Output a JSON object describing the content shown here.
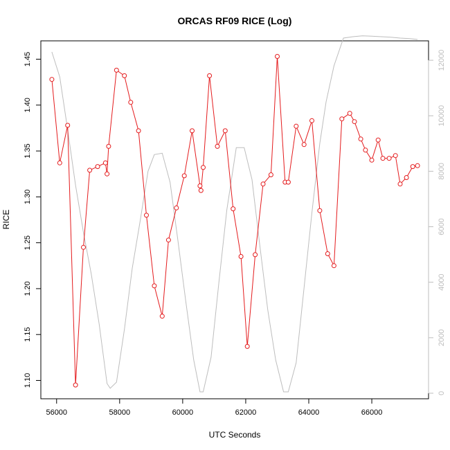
{
  "chart_data": {
    "type": "line",
    "title": "ORCAS RF09 RICE (Log)",
    "xlabel": "UTC Seconds",
    "ylabel": "RICE",
    "xlim": [
      55500,
      67800
    ],
    "ylim": [
      1.08,
      1.47
    ],
    "y2lim": [
      -200,
      12700
    ],
    "x_ticks": [
      56000,
      58000,
      60000,
      62000,
      64000,
      66000
    ],
    "y_ticks": [
      1.1,
      1.15,
      1.2,
      1.25,
      1.3,
      1.35,
      1.4,
      1.45
    ],
    "y2_ticks": [
      0,
      2000,
      4000,
      6000,
      8000,
      10000,
      12000
    ],
    "x_tick_labels": [
      "56000",
      "58000",
      "60000",
      "62000",
      "64000",
      "66000"
    ],
    "y_tick_labels": [
      "1.10",
      "1.15",
      "1.20",
      "1.25",
      "1.30",
      "1.35",
      "1.40",
      "1.45"
    ],
    "y2_tick_labels": [
      "0",
      "2000",
      "4000",
      "6000",
      "8000",
      "10000",
      "12000"
    ],
    "series": [
      {
        "axis": "left",
        "color": "#e41a1c",
        "marker": "open-circle",
        "x": [
          55850,
          56100,
          56350,
          56600,
          56850,
          57050,
          57300,
          57550,
          57600,
          57650,
          57900,
          58150,
          58350,
          58600,
          58850,
          59100,
          59350,
          59550,
          59800,
          60050,
          60300,
          60550,
          60580,
          60650,
          60850,
          61100,
          61350,
          61600,
          61850,
          62050,
          62300,
          62550,
          62800,
          63000,
          63250,
          63350,
          63600,
          63850,
          64100,
          64350,
          64600,
          64800,
          65050,
          65300,
          65450,
          65650,
          65800,
          66000,
          66200,
          66350,
          66550,
          66750,
          66900,
          67100,
          67300,
          67450
        ],
        "values": [
          1.428,
          1.337,
          1.378,
          1.095,
          1.245,
          1.329,
          1.333,
          1.337,
          1.325,
          1.355,
          1.438,
          1.432,
          1.403,
          1.372,
          1.28,
          1.203,
          1.17,
          1.253,
          1.288,
          1.323,
          1.372,
          1.312,
          1.307,
          1.332,
          1.432,
          1.355,
          1.372,
          1.287,
          1.235,
          1.137,
          1.237,
          1.314,
          1.324,
          1.453,
          1.316,
          1.316,
          1.377,
          1.357,
          1.383,
          1.285,
          1.238,
          1.225,
          1.385,
          1.391,
          1.382,
          1.363,
          1.351,
          1.34,
          1.362,
          1.342,
          1.342,
          1.345,
          1.314,
          1.321,
          1.333,
          1.334
        ]
      },
      {
        "axis": "right",
        "color": "#bdbdbd",
        "marker": "none",
        "x": [
          55850,
          56100,
          56350,
          56600,
          56850,
          57100,
          57350,
          57600,
          57700,
          57900,
          58150,
          58400,
          58650,
          58900,
          59100,
          59350,
          59600,
          59850,
          60100,
          60350,
          60550,
          60650,
          60900,
          61150,
          61400,
          61700,
          61950,
          62200,
          62450,
          62700,
          62950,
          63200,
          63350,
          63600,
          63850,
          64100,
          64350,
          64550,
          64800,
          65100,
          65400,
          65700,
          66000,
          66300,
          66600,
          66900,
          67200,
          67450
        ],
        "values": [
          12300,
          11400,
          9500,
          7500,
          5800,
          4300,
          2500,
          350,
          180,
          400,
          2300,
          4500,
          6200,
          8000,
          8600,
          8650,
          7600,
          5500,
          3300,
          1200,
          50,
          50,
          1300,
          4000,
          6600,
          8850,
          8850,
          7700,
          5300,
          3000,
          1200,
          50,
          50,
          1100,
          3800,
          6500,
          9000,
          10500,
          11800,
          12800,
          12850,
          12880,
          12870,
          12850,
          12830,
          12800,
          12780,
          12750
        ]
      }
    ]
  }
}
